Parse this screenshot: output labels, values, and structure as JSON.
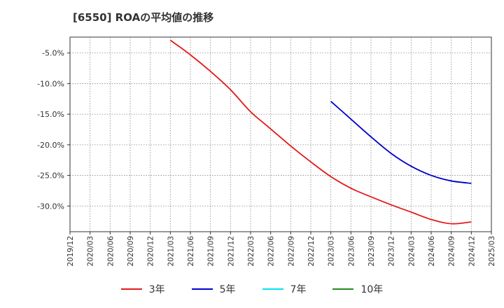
{
  "chart_data": {
    "type": "line",
    "title": "[6550]  ROAの平均値の推移",
    "x_ticks": [
      "2019/12",
      "2020/03",
      "2020/06",
      "2020/09",
      "2020/12",
      "2021/03",
      "2021/06",
      "2021/09",
      "2021/12",
      "2022/03",
      "2022/06",
      "2022/09",
      "2022/12",
      "2023/03",
      "2023/06",
      "2023/09",
      "2023/12",
      "2024/03",
      "2024/06",
      "2024/09",
      "2024/12",
      "2025/03"
    ],
    "y_ticks": [
      "-5.0%",
      "-10.0%",
      "-15.0%",
      "-20.0%",
      "-25.0%",
      "-30.0%"
    ],
    "y_tick_values": [
      -5,
      -10,
      -15,
      -20,
      -25,
      -30
    ],
    "ylim": [
      -34.2,
      -2.4
    ],
    "grid": true,
    "legend_position": "bottom",
    "series": [
      {
        "name": "3年",
        "color": "#e31a1c",
        "x": [
          "2021/03",
          "2021/06",
          "2021/09",
          "2021/12",
          "2022/03",
          "2022/06",
          "2022/09",
          "2022/12",
          "2023/03",
          "2023/06",
          "2023/09",
          "2023/12",
          "2024/03",
          "2024/06",
          "2024/09",
          "2024/12"
        ],
        "values": [
          -2.9,
          -5.3,
          -8.0,
          -11.0,
          -14.6,
          -17.4,
          -20.2,
          -22.8,
          -25.2,
          -27.1,
          -28.5,
          -29.8,
          -31.0,
          -32.2,
          -32.9,
          -32.6
        ]
      },
      {
        "name": "5年",
        "color": "#0000cd",
        "x": [
          "2023/03",
          "2023/06",
          "2023/09",
          "2023/12",
          "2024/03",
          "2024/06",
          "2024/09",
          "2024/12"
        ],
        "values": [
          -12.9,
          -15.8,
          -18.7,
          -21.4,
          -23.5,
          -25.0,
          -25.9,
          -26.3
        ]
      },
      {
        "name": "7年",
        "color": "#00e5ee",
        "x": [],
        "values": []
      },
      {
        "name": "10年",
        "color": "#228b22",
        "x": [],
        "values": []
      }
    ]
  }
}
